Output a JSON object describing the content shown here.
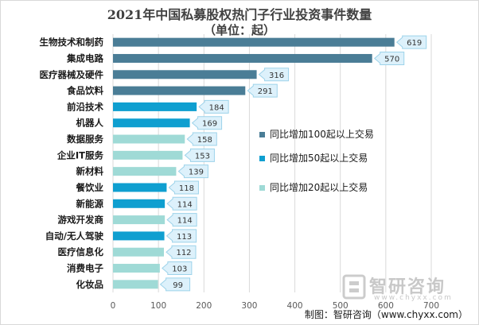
{
  "chart_data": {
    "type": "bar",
    "orientation": "horizontal",
    "title": "2021年中国私募股权热门子行业投资事件数量",
    "subtitle": "（单位：起）",
    "categories": [
      "生物技术和制药",
      "集成电路",
      "医疗器械及硬件",
      "食品饮料",
      "前沿技术",
      "机器人",
      "数据服务",
      "企业IT服务",
      "新材料",
      "餐饮业",
      "新能源",
      "游戏开发商",
      "自动/无人驾驶",
      "医疗信息化",
      "消费电子",
      "化妆品"
    ],
    "values": [
      619,
      570,
      316,
      291,
      184,
      169,
      158,
      153,
      139,
      118,
      114,
      114,
      113,
      112,
      103,
      99
    ],
    "groups": [
      0,
      0,
      0,
      0,
      1,
      1,
      2,
      2,
      2,
      1,
      1,
      2,
      1,
      2,
      2,
      2
    ],
    "legend": [
      "同比增加100起以上交易",
      "同比增加50起以上交易",
      "同比增加20起以上交易"
    ],
    "colors": [
      "#4a7d96",
      "#0f9fd0",
      "#9fdad6"
    ],
    "label_box_color": "#ddf1fb",
    "label_border_color": "#9dd3ea",
    "xticks": [
      0,
      100,
      200,
      300,
      400,
      500,
      600,
      700
    ],
    "xlim": [
      0,
      700
    ],
    "grid": true,
    "legend_position": "right"
  },
  "watermark": {
    "text": "智研咨询",
    "url": "www.chyxx.com"
  },
  "source": "制图：智研咨询（www.chyxx.com）"
}
